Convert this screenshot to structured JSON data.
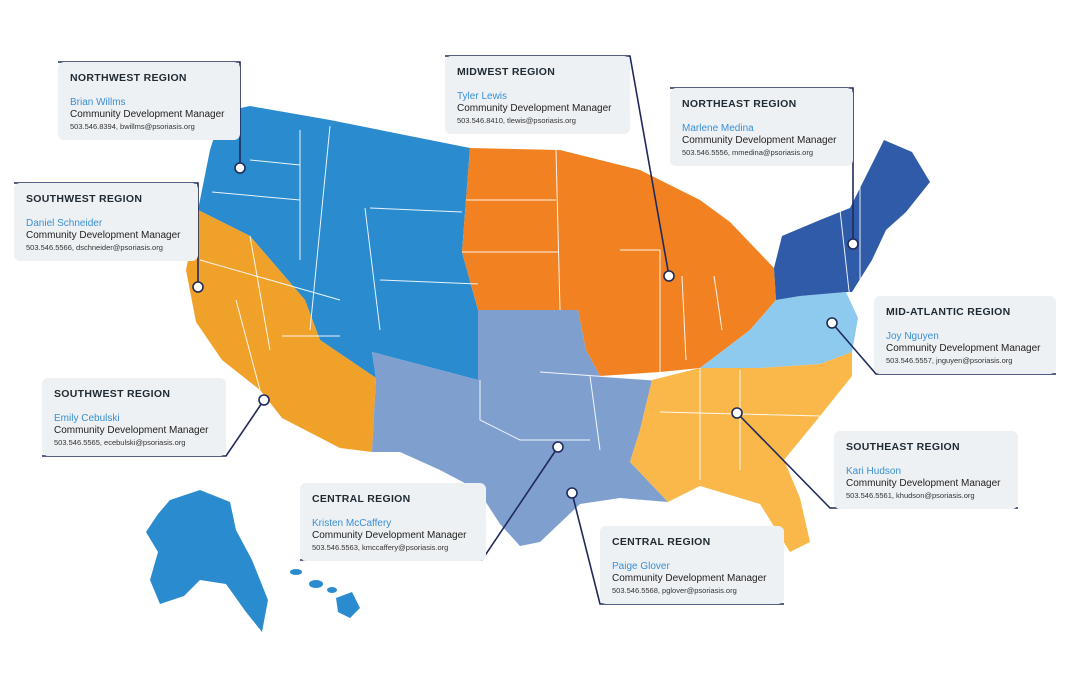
{
  "colors": {
    "west": "#2a8bcf",
    "southwest": "#f0a12a",
    "midwest": "#f28221",
    "northeast": "#2f5ba8",
    "mid_atlantic": "#8ec9ee",
    "southeast": "#fbb84a",
    "central": "#7f9fcf",
    "leader": "#1f2a5c",
    "name": "#3a8fd6",
    "card_bg": "#eef1f3"
  },
  "regions": [
    {
      "id": "northwest",
      "title": "NORTHWEST REGION",
      "name": "Brian Willms",
      "role": "Community Development Manager",
      "contact": "503.546.8394, bwillms@psoriasis.org"
    },
    {
      "id": "southwest1",
      "title": "SOUTHWEST REGION",
      "name": "Daniel Schneider",
      "role": "Community Development Manager",
      "contact": "503.546.5566, dschneider@psoriasis.org"
    },
    {
      "id": "midwest",
      "title": "MIDWEST REGION",
      "name": "Tyler Lewis",
      "role": "Community Development Manager",
      "contact": "503.546.8410, tlewis@psoriasis.org"
    },
    {
      "id": "northeast",
      "title": "NORTHEAST REGION",
      "name": "Marlene Medina",
      "role": "Community Development Manager",
      "contact": "503.546.5556, mmedina@psoriasis.org"
    },
    {
      "id": "midatlantic",
      "title": "MID-ATLANTIC REGION",
      "name": "Joy Nguyen",
      "role": "Community Development Manager",
      "contact": "503.546.5557, jnguyen@psoriasis.org"
    },
    {
      "id": "southwest2",
      "title": "SOUTHWEST REGION",
      "name": "Emily Cebulski",
      "role": "Community Development Manager",
      "contact": "503.546.5565, ecebulski@psoriasis.org"
    },
    {
      "id": "southeast",
      "title": "SOUTHEAST REGION",
      "name": "Kari Hudson",
      "role": "Community Development Manager",
      "contact": "503.546.5561, khudson@psoriasis.org"
    },
    {
      "id": "central1",
      "title": "CENTRAL REGION",
      "name": "Kristen McCaffery",
      "role": "Community Development Manager",
      "contact": "503.546.5563, kmccaffery@psoriasis.org"
    },
    {
      "id": "central2",
      "title": "CENTRAL REGION",
      "name": "Paige Glover",
      "role": "Community Development Manager",
      "contact": "503.546.5568, pglover@psoriasis.org"
    }
  ]
}
